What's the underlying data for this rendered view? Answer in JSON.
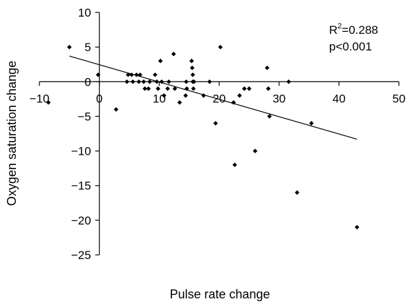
{
  "chart_data": {
    "type": "scatter",
    "title": "",
    "xlabel": "Pulse rate change",
    "ylabel": "Oxygen saturation change",
    "xlim": [
      -10,
      50
    ],
    "ylim": [
      -25,
      10
    ],
    "xticks": [
      "−10",
      "0",
      "10",
      "20",
      "30",
      "40",
      "50"
    ],
    "yticks": [
      "10",
      "5",
      "0",
      "−5",
      "−10",
      "−15",
      "−20",
      "−25"
    ],
    "xtick_values": [
      -10,
      0,
      10,
      20,
      30,
      40,
      50
    ],
    "ytick_values": [
      10,
      5,
      0,
      -5,
      -10,
      -15,
      -20,
      -25
    ],
    "grid": false,
    "legend": "none",
    "marker": "diamond",
    "marker_color": "#000000",
    "annotation": {
      "r2_prefix": "R",
      "r2_superscript": "2",
      "r2_value": "=0.288",
      "p_value": "p<0.001"
    },
    "series": [
      {
        "x": [
          -8.5,
          -5,
          -0.2,
          2.8,
          4.6,
          4.8,
          5.4,
          5.6,
          6.2,
          6.6,
          6.8,
          7.4,
          7.6,
          8.2,
          8.4,
          9.3,
          9.6,
          9.8,
          10.2,
          10.4,
          10.8,
          11.4,
          11.6,
          12.4,
          12.6,
          13.4,
          14.4,
          14.5,
          14.6,
          15.4,
          15.5,
          15.6,
          15.6,
          15.7,
          15.8,
          17.4,
          18.4,
          19.4,
          20.2,
          22.4,
          22.6,
          23.4,
          24.2,
          25,
          26,
          28,
          28.2,
          28.4,
          31.6,
          33,
          35.4,
          43
        ],
        "y": [
          -3,
          5,
          1,
          -4,
          0,
          1,
          1,
          0,
          1,
          0,
          1,
          0,
          -1,
          -1,
          0,
          1,
          0,
          -1,
          3,
          0,
          -2,
          -1,
          0,
          4,
          -1,
          -3,
          -2,
          0,
          -1,
          3,
          2,
          1,
          0,
          -1,
          0,
          -2,
          0,
          -6,
          5,
          -3,
          -12,
          -2,
          -1,
          -1,
          -10,
          2,
          -1,
          -5,
          0,
          -16,
          -6,
          -21
        ]
      }
    ],
    "trendline": {
      "x": [
        -5,
        43
      ],
      "y": [
        3.7,
        -8.3
      ]
    }
  }
}
